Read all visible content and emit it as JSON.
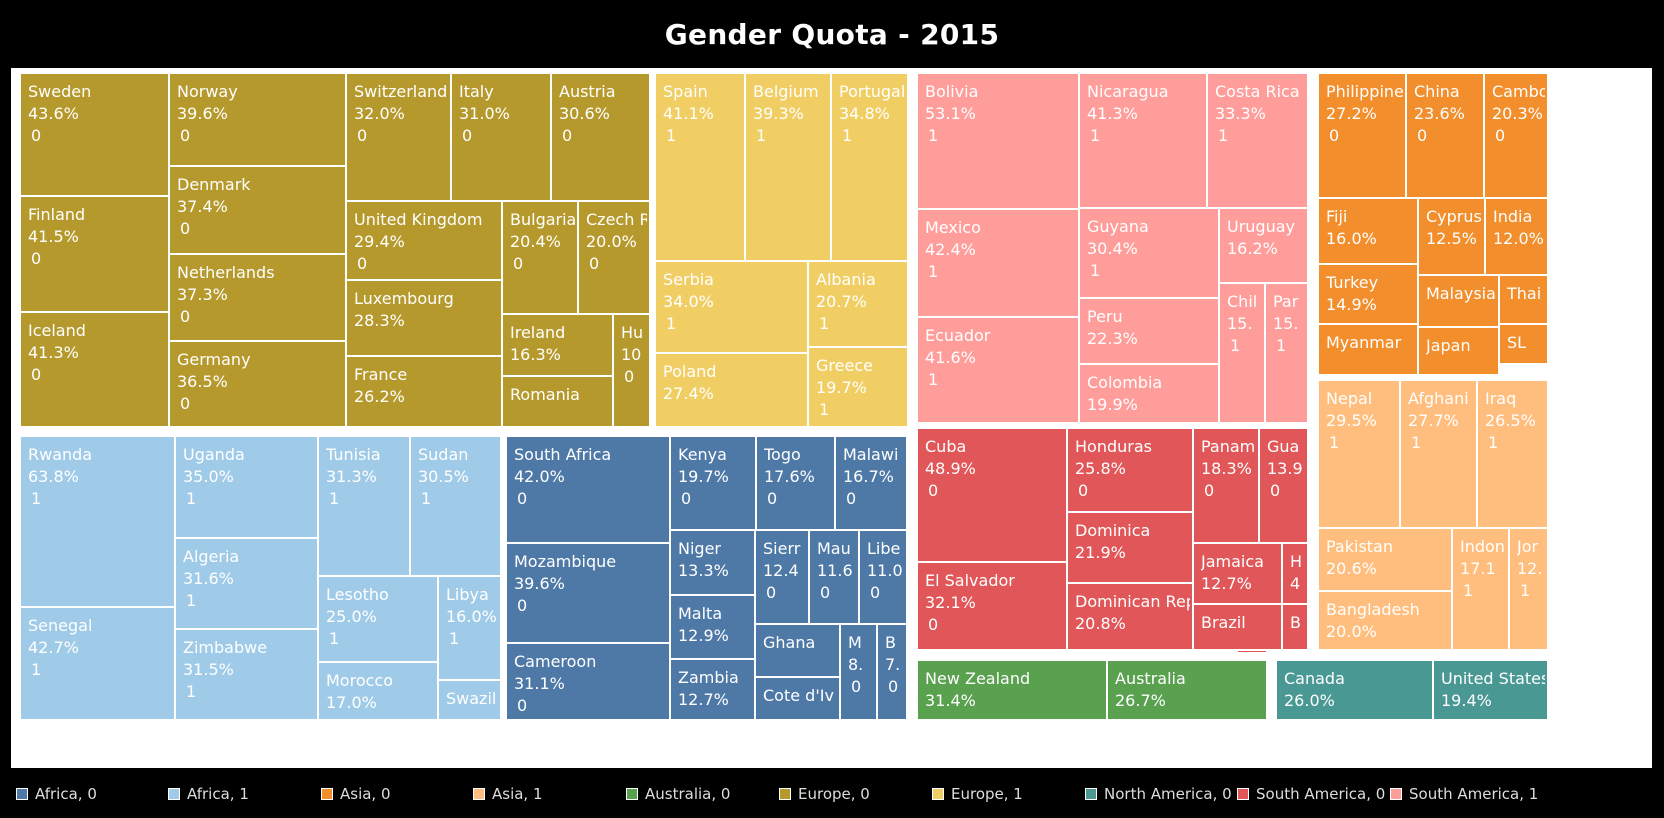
{
  "title": "Gender Quota - 2015",
  "colors": {
    "Africa, 0": "#4e79a7",
    "Africa, 1": "#a0cbe8",
    "Asia, 0": "#f28e2b",
    "Asia, 1": "#ffbe7d",
    "Australia, 0": "#59a14f",
    "Europe, 0": "#b6992d",
    "Europe, 1": "#f1ce63",
    "North America, 0": "#499894",
    "South America, 0": "#e15759",
    "South America, 1": "#ff9d9a"
  },
  "legend": [
    "Africa, 0",
    "Africa, 1",
    "Asia, 0",
    "Asia, 1",
    "Australia, 0",
    "Europe, 0",
    "Europe, 1",
    "North America, 0",
    "South America, 0",
    "South America, 1"
  ],
  "chart_data": {
    "type": "treemap",
    "title": "Gender Quota - 2015",
    "color_by": "continent, quota flag",
    "items": [
      {
        "name": "Sweden",
        "value": "43.6%",
        "flag": "0",
        "group": "Europe, 0"
      },
      {
        "name": "Finland",
        "value": "41.5%",
        "flag": "0",
        "group": "Europe, 0"
      },
      {
        "name": "Iceland",
        "value": "41.3%",
        "flag": "0",
        "group": "Europe, 0"
      },
      {
        "name": "Norway",
        "value": "39.6%",
        "flag": "0",
        "group": "Europe, 0"
      },
      {
        "name": "Denmark",
        "value": "37.4%",
        "flag": "0",
        "group": "Europe, 0"
      },
      {
        "name": "Netherlands",
        "value": "37.3%",
        "flag": "0",
        "group": "Europe, 0"
      },
      {
        "name": "Germany",
        "value": "36.5%",
        "flag": "0",
        "group": "Europe, 0"
      },
      {
        "name": "Switzerland",
        "value": "32.0%",
        "flag": "0",
        "group": "Europe, 0"
      },
      {
        "name": "Italy",
        "value": "31.0%",
        "flag": "0",
        "group": "Europe, 0"
      },
      {
        "name": "Austria",
        "value": "30.6%",
        "flag": "0",
        "group": "Europe, 0"
      },
      {
        "name": "United Kingdom",
        "value": "29.4%",
        "flag": "0",
        "group": "Europe, 0"
      },
      {
        "name": "Bulgaria",
        "value": "20.4%",
        "flag": "0",
        "group": "Europe, 0"
      },
      {
        "name": "Czech R",
        "value": "20.0%",
        "flag": "0",
        "group": "Europe, 0"
      },
      {
        "name": "Luxembourg",
        "value": "28.3%",
        "flag": "",
        "group": "Europe, 0"
      },
      {
        "name": "Ireland",
        "value": "16.3%",
        "flag": "",
        "group": "Europe, 0"
      },
      {
        "name": "Hu",
        "value": "10",
        "flag": "0",
        "group": "Europe, 0"
      },
      {
        "name": "France",
        "value": "26.2%",
        "flag": "",
        "group": "Europe, 0"
      },
      {
        "name": "Romania",
        "value": "",
        "flag": "",
        "group": "Europe, 0"
      },
      {
        "name": "Spain",
        "value": "41.1%",
        "flag": "1",
        "group": "Europe, 1"
      },
      {
        "name": "Belgium",
        "value": "39.3%",
        "flag": "1",
        "group": "Europe, 1"
      },
      {
        "name": "Portugal",
        "value": "34.8%",
        "flag": "1",
        "group": "Europe, 1"
      },
      {
        "name": "Serbia",
        "value": "34.0%",
        "flag": "1",
        "group": "Europe, 1"
      },
      {
        "name": "Albania",
        "value": "20.7%",
        "flag": "1",
        "group": "Europe, 1"
      },
      {
        "name": "Poland",
        "value": "27.4%",
        "flag": "",
        "group": "Europe, 1"
      },
      {
        "name": "Greece",
        "value": "19.7%",
        "flag": "1",
        "group": "Europe, 1"
      },
      {
        "name": "Bolivia",
        "value": "53.1%",
        "flag": "1",
        "group": "South America, 1"
      },
      {
        "name": "Nicaragua",
        "value": "41.3%",
        "flag": "1",
        "group": "South America, 1"
      },
      {
        "name": "Costa Rica",
        "value": "33.3%",
        "flag": "1",
        "group": "South America, 1"
      },
      {
        "name": "Mexico",
        "value": "42.4%",
        "flag": "1",
        "group": "South America, 1"
      },
      {
        "name": "Guyana",
        "value": "30.4%",
        "flag": "1",
        "group": "South America, 1"
      },
      {
        "name": "Uruguay",
        "value": "16.2%",
        "flag": "",
        "group": "South America, 1"
      },
      {
        "name": "Ecuador",
        "value": "41.6%",
        "flag": "1",
        "group": "South America, 1"
      },
      {
        "name": "Peru",
        "value": "22.3%",
        "flag": "",
        "group": "South America, 1"
      },
      {
        "name": "Chil",
        "value": "15.",
        "flag": "1",
        "group": "South America, 1"
      },
      {
        "name": "Par",
        "value": "15.",
        "flag": "1",
        "group": "South America, 1"
      },
      {
        "name": "Colombia",
        "value": "19.9%",
        "flag": "",
        "group": "South America, 1"
      },
      {
        "name": "Philippine",
        "value": "27.2%",
        "flag": "0",
        "group": "Asia, 0"
      },
      {
        "name": "China",
        "value": "23.6%",
        "flag": "0",
        "group": "Asia, 0"
      },
      {
        "name": "Cambo",
        "value": "20.3%",
        "flag": "0",
        "group": "Asia, 0"
      },
      {
        "name": "Fiji",
        "value": "16.0%",
        "flag": "",
        "group": "Asia, 0"
      },
      {
        "name": "Cyprus",
        "value": "12.5%",
        "flag": "",
        "group": "Asia, 0"
      },
      {
        "name": "India",
        "value": "12.0%",
        "flag": "",
        "group": "Asia, 0"
      },
      {
        "name": "Turkey",
        "value": "14.9%",
        "flag": "",
        "group": "Asia, 0"
      },
      {
        "name": "Malaysia",
        "value": "",
        "flag": "",
        "group": "Asia, 0"
      },
      {
        "name": "Thai",
        "value": "",
        "flag": "",
        "group": "Asia, 0"
      },
      {
        "name": "Myanmar",
        "value": "",
        "flag": "",
        "group": "Asia, 0"
      },
      {
        "name": "Japan",
        "value": "",
        "flag": "",
        "group": "Asia, 0"
      },
      {
        "name": "SL",
        "value": "",
        "flag": "",
        "group": "Asia, 0"
      },
      {
        "name": "Nepal",
        "value": "29.5%",
        "flag": "1",
        "group": "Asia, 1"
      },
      {
        "name": "Afghani",
        "value": "27.7%",
        "flag": "1",
        "group": "Asia, 1"
      },
      {
        "name": "Iraq",
        "value": "26.5%",
        "flag": "1",
        "group": "Asia, 1"
      },
      {
        "name": "Pakistan",
        "value": "20.6%",
        "flag": "",
        "group": "Asia, 1"
      },
      {
        "name": "Indon",
        "value": "17.1",
        "flag": "1",
        "group": "Asia, 1"
      },
      {
        "name": "Jor",
        "value": "12.",
        "flag": "1",
        "group": "Asia, 1"
      },
      {
        "name": "Bangladesh",
        "value": "20.0%",
        "flag": "",
        "group": "Asia, 1"
      },
      {
        "name": "Rwanda",
        "value": "63.8%",
        "flag": "1",
        "group": "Africa, 1"
      },
      {
        "name": "Senegal",
        "value": "42.7%",
        "flag": "1",
        "group": "Africa, 1"
      },
      {
        "name": "Uganda",
        "value": "35.0%",
        "flag": "1",
        "group": "Africa, 1"
      },
      {
        "name": "Algeria",
        "value": "31.6%",
        "flag": "1",
        "group": "Africa, 1"
      },
      {
        "name": "Zimbabwe",
        "value": "31.5%",
        "flag": "1",
        "group": "Africa, 1"
      },
      {
        "name": "Tunisia",
        "value": "31.3%",
        "flag": "1",
        "group": "Africa, 1"
      },
      {
        "name": "Sudan",
        "value": "30.5%",
        "flag": "1",
        "group": "Africa, 1"
      },
      {
        "name": "Lesotho",
        "value": "25.0%",
        "flag": "1",
        "group": "Africa, 1"
      },
      {
        "name": "Libya",
        "value": "16.0%",
        "flag": "1",
        "group": "Africa, 1"
      },
      {
        "name": "Morocco",
        "value": "17.0%",
        "flag": "",
        "group": "Africa, 1"
      },
      {
        "name": "Swazil",
        "value": "",
        "flag": "",
        "group": "Africa, 1"
      },
      {
        "name": "South Africa",
        "value": "42.0%",
        "flag": "0",
        "group": "Africa, 0"
      },
      {
        "name": "Mozambique",
        "value": "39.6%",
        "flag": "0",
        "group": "Africa, 0"
      },
      {
        "name": "Cameroon",
        "value": "31.1%",
        "flag": "0",
        "group": "Africa, 0"
      },
      {
        "name": "Kenya",
        "value": "19.7%",
        "flag": "0",
        "group": "Africa, 0"
      },
      {
        "name": "Togo",
        "value": "17.6%",
        "flag": "0",
        "group": "Africa, 0"
      },
      {
        "name": "Malawi",
        "value": "16.7%",
        "flag": "0",
        "group": "Africa, 0"
      },
      {
        "name": "Niger",
        "value": "13.3%",
        "flag": "",
        "group": "Africa, 0"
      },
      {
        "name": "Sierr",
        "value": "12.4",
        "flag": "0",
        "group": "Africa, 0"
      },
      {
        "name": "Mau",
        "value": "11.6",
        "flag": "0",
        "group": "Africa, 0"
      },
      {
        "name": "Libe",
        "value": "11.0",
        "flag": "0",
        "group": "Africa, 0"
      },
      {
        "name": "Malta",
        "value": "12.9%",
        "flag": "",
        "group": "Africa, 0"
      },
      {
        "name": "Zambia",
        "value": "12.7%",
        "flag": "",
        "group": "Africa, 0"
      },
      {
        "name": "Ghana",
        "value": "",
        "flag": "",
        "group": "Africa, 0"
      },
      {
        "name": "Cote d'Iv",
        "value": "",
        "flag": "",
        "group": "Africa, 0"
      },
      {
        "name": "M",
        "value": "8.",
        "flag": "0",
        "group": "Africa, 0"
      },
      {
        "name": "B",
        "value": "7.",
        "flag": "0",
        "group": "Africa, 0"
      },
      {
        "name": "Cuba",
        "value": "48.9%",
        "flag": "0",
        "group": "South America, 0"
      },
      {
        "name": "El Salvador",
        "value": "32.1%",
        "flag": "0",
        "group": "South America, 0"
      },
      {
        "name": "Honduras",
        "value": "25.8%",
        "flag": "0",
        "group": "South America, 0"
      },
      {
        "name": "Panam",
        "value": "18.3%",
        "flag": "0",
        "group": "South America, 0"
      },
      {
        "name": "Gua",
        "value": "13.9",
        "flag": "0",
        "group": "South America, 0"
      },
      {
        "name": "Dominica",
        "value": "21.9%",
        "flag": "",
        "group": "South America, 0"
      },
      {
        "name": "Jamaica",
        "value": "12.7%",
        "flag": "",
        "group": "South America, 0"
      },
      {
        "name": "H",
        "value": "4",
        "flag": "",
        "group": "South America, 0"
      },
      {
        "name": "Dominican Rep",
        "value": "20.8%",
        "flag": "",
        "group": "South America, 0"
      },
      {
        "name": "Brazil",
        "value": "",
        "flag": "",
        "group": "South America, 0"
      },
      {
        "name": "B",
        "value": "",
        "flag": "",
        "group": "South America, 0"
      },
      {
        "name": "",
        "value": "",
        "flag": "",
        "group": "South America, 0"
      },
      {
        "name": "New Zealand",
        "value": "31.4%",
        "flag": "",
        "group": "Australia, 0"
      },
      {
        "name": "Australia",
        "value": "26.7%",
        "flag": "",
        "group": "Australia, 0"
      },
      {
        "name": "Canada",
        "value": "26.0%",
        "flag": "",
        "group": "North America, 0"
      },
      {
        "name": "United States",
        "value": "19.4%",
        "flag": "",
        "group": "North America, 0"
      }
    ]
  }
}
